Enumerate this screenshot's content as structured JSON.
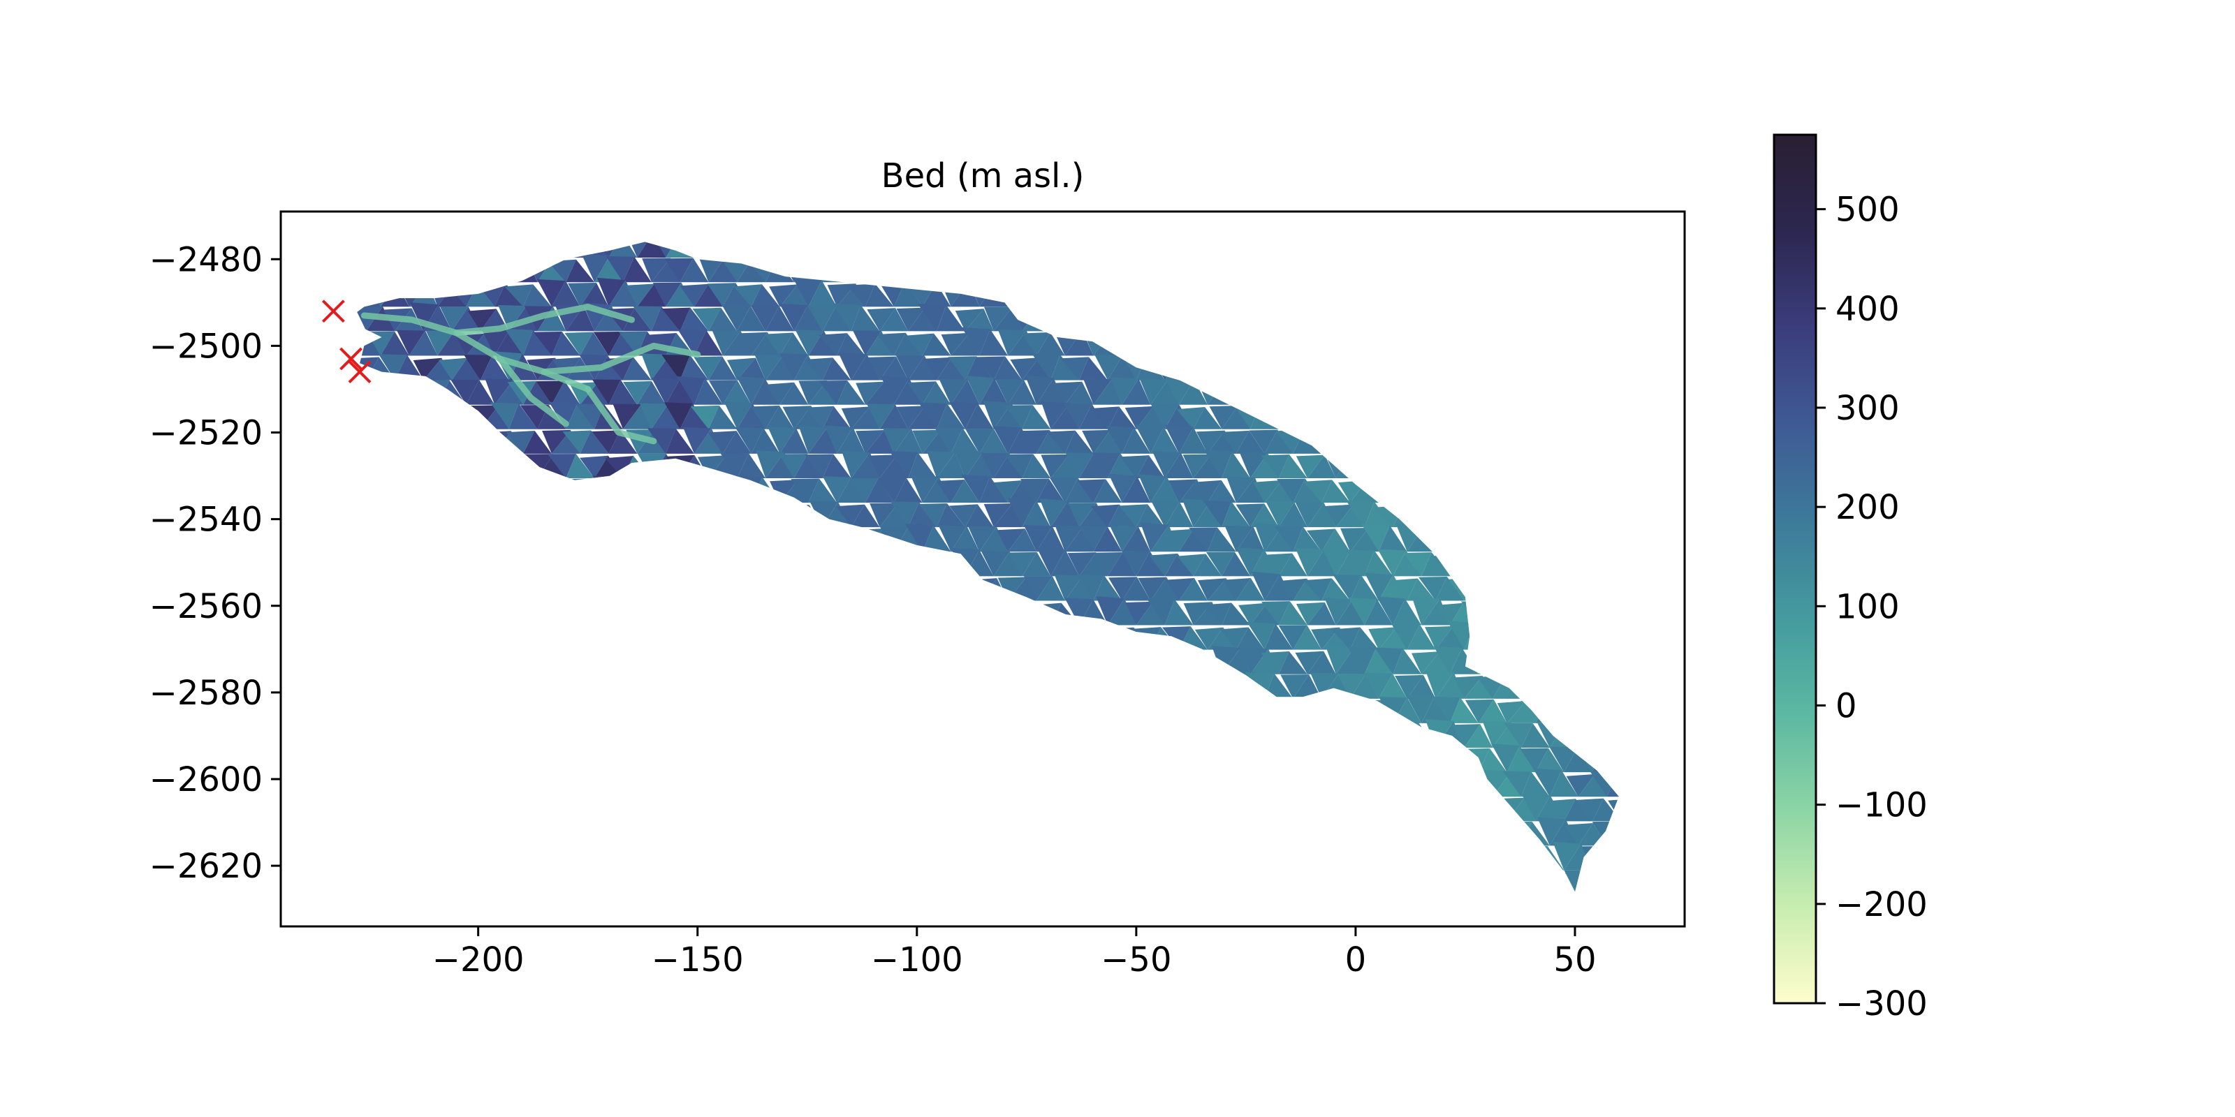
{
  "chart_data": {
    "type": "heatmap",
    "title": "Bed (m asl.)",
    "xlabel": "",
    "ylabel": "",
    "xlim": [
      -245,
      75
    ],
    "ylim": [
      -2634,
      -2469
    ],
    "x_ticks": [
      -200,
      -150,
      -100,
      -50,
      0,
      50
    ],
    "x_tick_labels": [
      "−200",
      "−150",
      "−100",
      "−50",
      "0",
      "50"
    ],
    "y_ticks": [
      -2480,
      -2500,
      -2520,
      -2540,
      -2560,
      -2580,
      -2600,
      -2620
    ],
    "y_tick_labels": [
      "−2480",
      "−2500",
      "−2520",
      "−2540",
      "−2560",
      "−2580",
      "−2600",
      "−2620"
    ],
    "grid": false,
    "colorbar": {
      "colormap": "deep",
      "vmin": -300,
      "vmax": 575,
      "ticks": [
        500,
        400,
        300,
        200,
        100,
        0,
        -100,
        -200,
        -300
      ],
      "tick_labels": [
        "500",
        "400",
        "300",
        "200",
        "100",
        "0",
        "−100",
        "−200",
        "−300"
      ],
      "colors": [
        "#fdfdcc",
        "#c8edb0",
        "#8cd5a5",
        "#5cb8a2",
        "#449a9e",
        "#3d7a9a",
        "#3e5a95",
        "#3b3d7c",
        "#2c2750",
        "#2a1f33"
      ]
    },
    "glacier_outline": [
      [
        -226,
        -2491
      ],
      [
        -218,
        -2489
      ],
      [
        -210,
        -2489
      ],
      [
        -200,
        -2488
      ],
      [
        -190,
        -2485
      ],
      [
        -180,
        -2480
      ],
      [
        -170,
        -2478
      ],
      [
        -162,
        -2476
      ],
      [
        -155,
        -2478
      ],
      [
        -150,
        -2480
      ],
      [
        -140,
        -2481
      ],
      [
        -130,
        -2484
      ],
      [
        -120,
        -2485
      ],
      [
        -110,
        -2486
      ],
      [
        -100,
        -2487
      ],
      [
        -90,
        -2488
      ],
      [
        -80,
        -2490
      ],
      [
        -77,
        -2494
      ],
      [
        -68,
        -2498
      ],
      [
        -60,
        -2499
      ],
      [
        -55,
        -2502
      ],
      [
        -50,
        -2505
      ],
      [
        -40,
        -2508
      ],
      [
        -30,
        -2513
      ],
      [
        -20,
        -2518
      ],
      [
        -10,
        -2523
      ],
      [
        0,
        -2532
      ],
      [
        10,
        -2540
      ],
      [
        18,
        -2548
      ],
      [
        25,
        -2558
      ],
      [
        26,
        -2567
      ],
      [
        25,
        -2574
      ],
      [
        35,
        -2579
      ],
      [
        40,
        -2584
      ],
      [
        45,
        -2590
      ],
      [
        55,
        -2598
      ],
      [
        60,
        -2604
      ],
      [
        57,
        -2612
      ],
      [
        52,
        -2618
      ],
      [
        50,
        -2626
      ],
      [
        48,
        -2622
      ],
      [
        42,
        -2614
      ],
      [
        36,
        -2607
      ],
      [
        30,
        -2600
      ],
      [
        28,
        -2595
      ],
      [
        22,
        -2590
      ],
      [
        15,
        -2588
      ],
      [
        10,
        -2585
      ],
      [
        5,
        -2582
      ],
      [
        -5,
        -2579
      ],
      [
        -12,
        -2581
      ],
      [
        -18,
        -2581
      ],
      [
        -25,
        -2576
      ],
      [
        -35,
        -2570
      ],
      [
        -42,
        -2567
      ],
      [
        -50,
        -2566
      ],
      [
        -58,
        -2563
      ],
      [
        -66,
        -2562
      ],
      [
        -75,
        -2558
      ],
      [
        -85,
        -2554
      ],
      [
        -90,
        -2548
      ],
      [
        -100,
        -2546
      ],
      [
        -112,
        -2542
      ],
      [
        -120,
        -2540
      ],
      [
        -128,
        -2535
      ],
      [
        -138,
        -2531
      ],
      [
        -148,
        -2528
      ],
      [
        -155,
        -2526
      ],
      [
        -165,
        -2527
      ],
      [
        -170,
        -2530
      ],
      [
        -178,
        -2531
      ],
      [
        -186,
        -2528
      ],
      [
        -195,
        -2520
      ],
      [
        -200,
        -2515
      ],
      [
        -207,
        -2510
      ],
      [
        -212,
        -2507
      ],
      [
        -222,
        -2506
      ],
      [
        -227,
        -2504
      ],
      [
        -226,
        -2500
      ],
      [
        -222,
        -2498
      ],
      [
        -226,
        -2496
      ],
      [
        -230,
        -2494
      ]
    ],
    "markers": {
      "shape": "x",
      "color": "#e41a1c",
      "points": [
        [
          -233,
          -2492
        ],
        [
          -229,
          -2503
        ],
        [
          -227,
          -2506
        ]
      ]
    }
  }
}
